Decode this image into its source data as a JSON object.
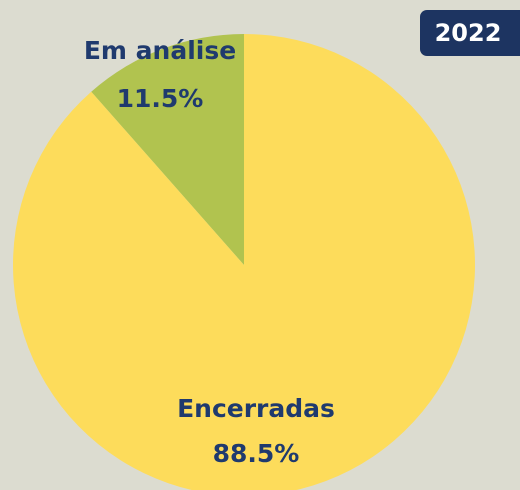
{
  "chart_data": {
    "type": "pie",
    "title": "2022",
    "categories": [
      "Em análise",
      "Encerradas"
    ],
    "values": [
      11.5,
      88.5
    ],
    "value_labels": [
      "11.5%",
      "88.5%"
    ],
    "colors": [
      "#b1c34f",
      "#fddc5b"
    ]
  }
}
